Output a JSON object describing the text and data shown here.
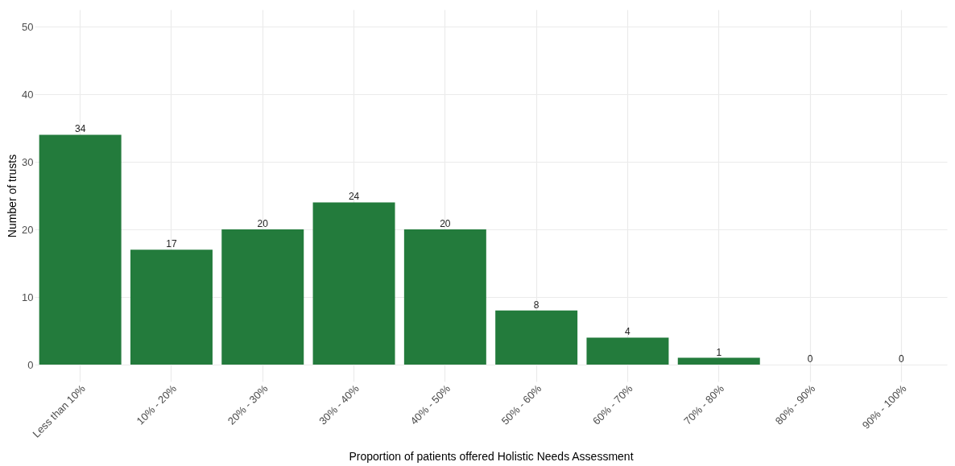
{
  "chart_data": {
    "type": "bar",
    "xlabel": "Proportion of patients offered Holistic Needs Assessment",
    "ylabel": "Number of trusts",
    "categories": [
      "Less than 10%",
      "10% - 20%",
      "20% - 30%",
      "30% - 40%",
      "40% - 50%",
      "50% - 60%",
      "60% - 70%",
      "70% - 80%",
      "80% - 90%",
      "90% - 100%"
    ],
    "values": [
      34,
      17,
      20,
      24,
      20,
      8,
      4,
      1,
      0,
      0
    ],
    "color": "#237b3c",
    "ylim": [
      -2.5,
      52.5
    ],
    "yticks": [
      0,
      10,
      20,
      30,
      40,
      50
    ],
    "grid": true,
    "data_labels": true
  }
}
